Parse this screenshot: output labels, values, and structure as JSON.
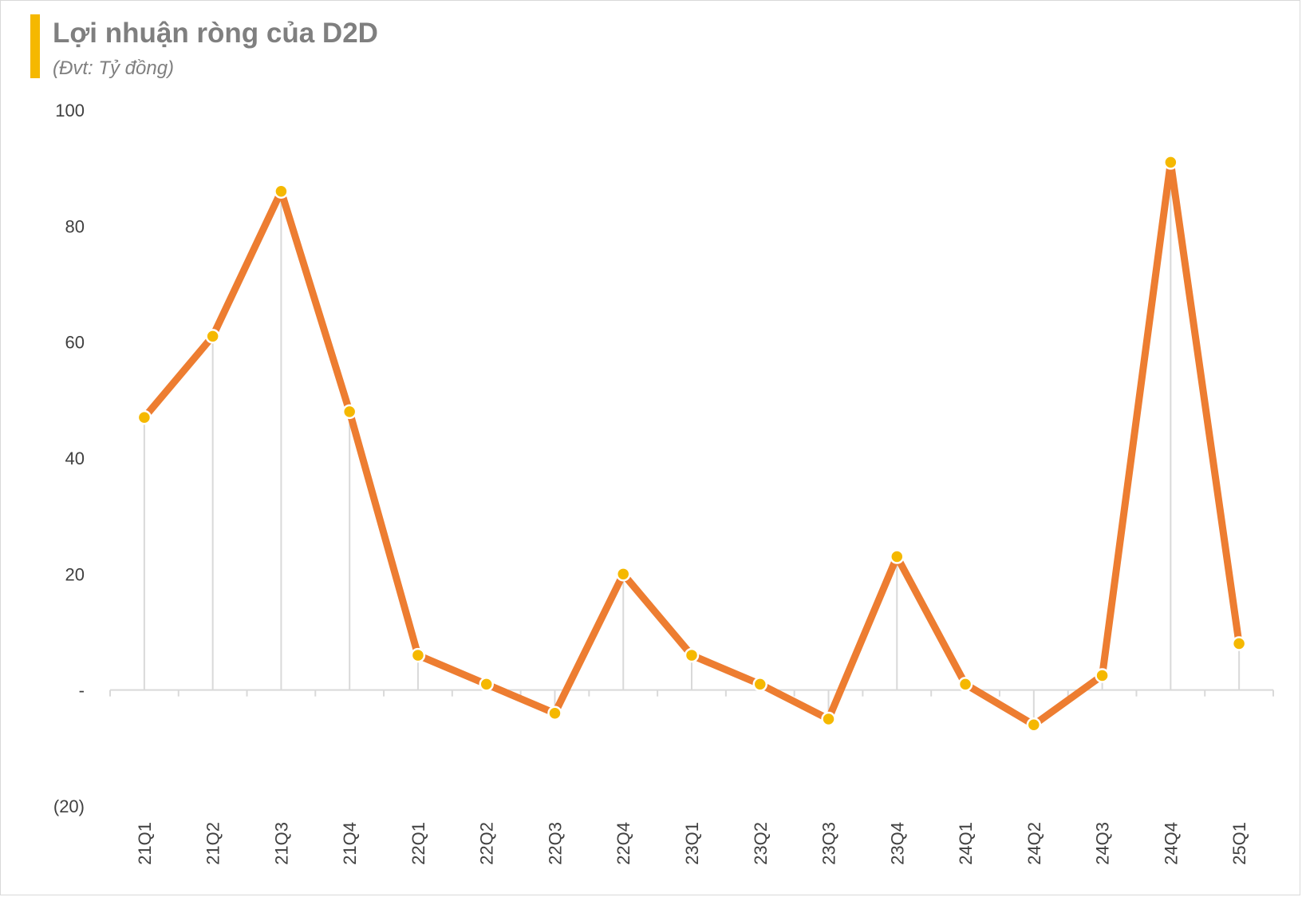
{
  "chart_data": {
    "type": "line",
    "title": "Lợi nhuận ròng của D2D",
    "subtitle": "(Đvt: Tỷ đồng)",
    "xlabel": "",
    "ylabel": "",
    "categories": [
      "21Q1",
      "21Q2",
      "21Q3",
      "21Q4",
      "22Q1",
      "22Q2",
      "22Q3",
      "22Q4",
      "23Q1",
      "23Q2",
      "23Q3",
      "23Q4",
      "24Q1",
      "24Q2",
      "24Q3",
      "24Q4",
      "25Q1"
    ],
    "values": [
      47,
      61,
      86,
      48,
      6,
      1,
      -4,
      20,
      6,
      1,
      -5,
      23,
      1,
      -6,
      2.5,
      91,
      8
    ],
    "ylim": [
      -20,
      100
    ],
    "yticks": [
      {
        "value": 100,
        "label": "100"
      },
      {
        "value": 80,
        "label": "80"
      },
      {
        "value": 60,
        "label": "60"
      },
      {
        "value": 40,
        "label": "40"
      },
      {
        "value": 20,
        "label": "20"
      },
      {
        "value": 0,
        "label": "-"
      },
      {
        "value": -20,
        "label": "(20)"
      }
    ],
    "grid": false,
    "legend": "none",
    "colors": {
      "line": "#ed7d31",
      "marker": "#f5b800",
      "marker_edge": "#ffffff",
      "drop_line": "#d9d9d9",
      "axis": "#d9d9d9",
      "accent_bar": "#f5b800"
    }
  }
}
